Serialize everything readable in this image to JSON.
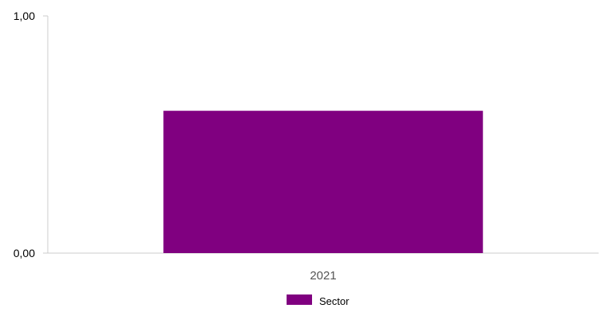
{
  "chart_data": {
    "type": "bar",
    "categories": [
      "2021"
    ],
    "series": [
      {
        "name": "Sector",
        "values": [
          0.6
        ],
        "color": "#800080"
      }
    ],
    "y_ticks": [
      "1,00",
      "0,00"
    ],
    "ylim": [
      0,
      1
    ],
    "grid": false,
    "legend_position": "bottom-center",
    "colors": {
      "axis": "#cccccc",
      "tick_label": "#000000",
      "category_label": "#555555"
    }
  }
}
